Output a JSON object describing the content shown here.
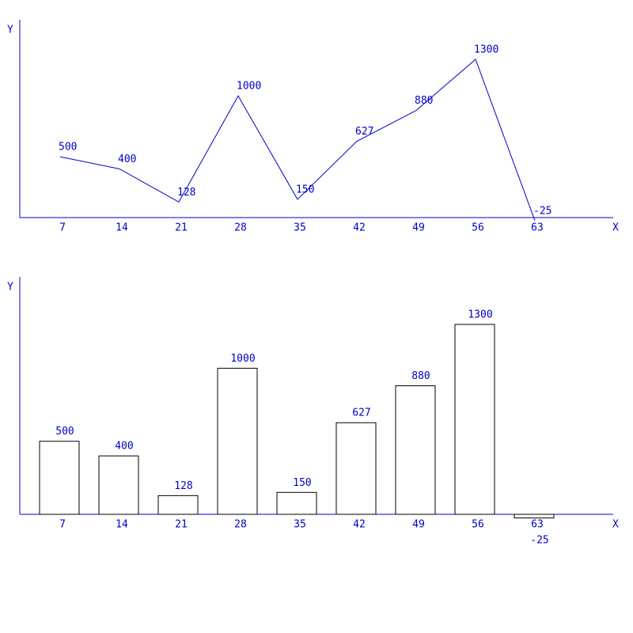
{
  "chart_data": [
    {
      "type": "line",
      "x_label": "X",
      "y_label": "Y",
      "categories": [
        "7",
        "14",
        "21",
        "28",
        "35",
        "42",
        "49",
        "56",
        "63"
      ],
      "values": [
        500,
        400,
        128,
        1000,
        150,
        627,
        880,
        1300,
        -25
      ],
      "color": "#0000cc",
      "ylim": [
        0,
        1625
      ]
    },
    {
      "type": "bar",
      "x_label": "X",
      "y_label": "Y",
      "categories": [
        "7",
        "14",
        "21",
        "28",
        "35",
        "42",
        "49",
        "56",
        "63"
      ],
      "values": [
        500,
        400,
        128,
        1000,
        150,
        627,
        880,
        1300,
        -25
      ],
      "color": "#ffffff",
      "ylim": [
        0,
        1625
      ]
    }
  ]
}
